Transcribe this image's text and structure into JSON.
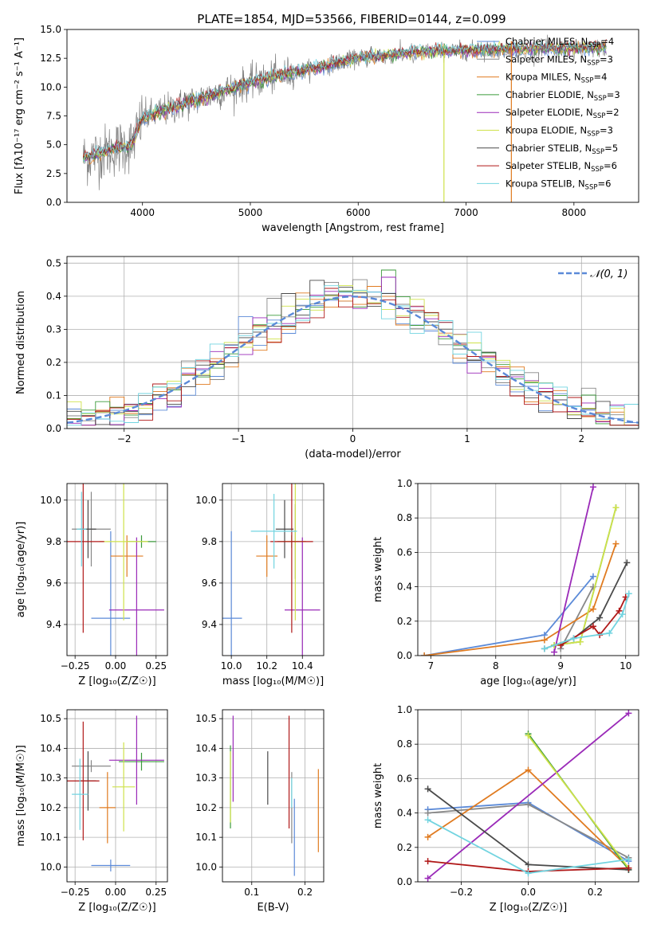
{
  "title": "PLATE=1854, MJD=53566, FIBERID=0144, z=0.099",
  "models": [
    {
      "name": "Chabrier MILES",
      "nssp": "4",
      "color": "#5b8ad8"
    },
    {
      "name": "Salpeter MILES",
      "nssp": "3",
      "color": "#888888"
    },
    {
      "name": "Kroupa MILES",
      "nssp": "4",
      "color": "#e07b20"
    },
    {
      "name": "Chabrier ELODIE",
      "nssp": "3",
      "color": "#3a9a3a"
    },
    {
      "name": "Salpeter ELODIE",
      "nssp": "2",
      "color": "#9a2ab8"
    },
    {
      "name": "Kroupa ELODIE",
      "nssp": "3",
      "color": "#cfe24a"
    },
    {
      "name": "Chabrier STELIB",
      "nssp": "5",
      "color": "#4a4a4a"
    },
    {
      "name": "Salpeter STELIB",
      "nssp": "6",
      "color": "#b01818"
    },
    {
      "name": "Kroupa STELIB",
      "nssp": "6",
      "color": "#72d4e0"
    }
  ],
  "chart_data": [
    {
      "type": "line",
      "id": "spectrum",
      "xlabel": "wavelength [Angstrom, rest frame]",
      "ylabel": "Flux [fλ10⁻¹⁷ erg cm⁻² s⁻¹ A⁻¹]",
      "xlim": [
        3300,
        8600
      ],
      "ylim": [
        0,
        15
      ],
      "xticks": [
        "4000",
        "5000",
        "6000",
        "7000",
        "8000"
      ],
      "yticks": [
        "0.0",
        "2.5",
        "5.0",
        "7.5",
        "10.0",
        "12.5",
        "15.0"
      ],
      "continuum": {
        "x": [
          3450,
          3800,
          3900,
          4000,
          4500,
          5000,
          5500,
          6000,
          6500,
          7000,
          7500,
          8300
        ],
        "y": [
          3.8,
          4.8,
          5.0,
          7.3,
          8.9,
          10.4,
          11.5,
          12.5,
          13.0,
          13.2,
          13.3,
          13.4
        ]
      },
      "legend_nssp_label": "N",
      "legend_nssp_sub": "SSP",
      "grid": false
    },
    {
      "type": "line",
      "id": "residuals",
      "xlabel": "(data-model)/error",
      "ylabel": "Normed distribution",
      "xlim": [
        -2.5,
        2.5
      ],
      "ylim": [
        0,
        0.52
      ],
      "xticks": [
        "−2",
        "−1",
        "0",
        "1",
        "2"
      ],
      "yticks": [
        "0.0",
        "0.1",
        "0.2",
        "0.3",
        "0.4",
        "0.5"
      ],
      "gaussian_label": "𝒩(0, 1)",
      "grid": true
    },
    {
      "type": "scatter",
      "id": "age_vs_Z",
      "xlabel": "Z [log₁₀(Z/Z☉)]",
      "ylabel": "age  [log₁₀(age/yr)]",
      "xlim": [
        -0.3,
        0.32
      ],
      "ylim": [
        9.25,
        10.08
      ],
      "xticks": [
        "−0.25",
        "0.00",
        "0.25"
      ],
      "yticks": [
        "9.4",
        "9.6",
        "9.8",
        "10.0"
      ],
      "points": [
        {
          "x": -0.03,
          "y": 9.43,
          "xerr": 0.12,
          "yerr": 0.42
        },
        {
          "x": -0.15,
          "y": 9.86,
          "xerr": 0.12,
          "yerr": 0.18
        },
        {
          "x": 0.07,
          "y": 9.73,
          "xerr": 0.1,
          "yerr": 0.1
        },
        {
          "x": 0.16,
          "y": 9.8,
          "xerr": 0.09,
          "yerr": 0.03
        },
        {
          "x": 0.13,
          "y": 9.47,
          "xerr": 0.17,
          "yerr": 0.35
        },
        {
          "x": 0.05,
          "y": 9.8,
          "xerr": 0.15,
          "yerr": 0.38
        },
        {
          "x": -0.17,
          "y": 9.86,
          "xerr": 0.05,
          "yerr": 0.14
        },
        {
          "x": -0.2,
          "y": 9.8,
          "xerr": 0.13,
          "yerr": 0.44
        },
        {
          "x": -0.21,
          "y": 9.86,
          "xerr": 0.03,
          "yerr": 0.18
        }
      ],
      "grid": true
    },
    {
      "type": "scatter",
      "id": "age_vs_mass",
      "xlabel": "mass [log₁₀(M/M☉)]",
      "ylabel": "",
      "xlim": [
        9.95,
        10.52
      ],
      "ylim": [
        9.25,
        10.08
      ],
      "xticks": [
        "10.0",
        "10.2",
        "10.4"
      ],
      "yticks": [
        "9.4",
        "9.6",
        "9.8",
        "10.0"
      ],
      "points": [
        {
          "x": 10.0,
          "y": 9.43,
          "xerr": 0.06,
          "yerr": 0.42
        },
        {
          "x": 10.36,
          "y": 9.8,
          "xerr": 0.02,
          "yerr": 0.18
        },
        {
          "x": 10.2,
          "y": 9.73,
          "xerr": 0.06,
          "yerr": 0.1
        },
        {
          "x": 10.34,
          "y": 9.8,
          "xerr": 0.08,
          "yerr": 0.03
        },
        {
          "x": 10.4,
          "y": 9.47,
          "xerr": 0.1,
          "yerr": 0.35
        },
        {
          "x": 10.36,
          "y": 9.8,
          "xerr": 0.06,
          "yerr": 0.38
        },
        {
          "x": 10.3,
          "y": 9.86,
          "xerr": 0.05,
          "yerr": 0.14
        },
        {
          "x": 10.34,
          "y": 9.8,
          "xerr": 0.12,
          "yerr": 0.44
        },
        {
          "x": 10.24,
          "y": 9.85,
          "xerr": 0.13,
          "yerr": 0.18
        }
      ],
      "grid": true
    },
    {
      "type": "line",
      "id": "weight_vs_age",
      "xlabel": "age  [log₁₀(age/yr)]",
      "ylabel": "mass weight",
      "xlim": [
        6.8,
        10.2
      ],
      "ylim": [
        0,
        1
      ],
      "xticks": [
        "7",
        "8",
        "9",
        "10"
      ],
      "yticks": [
        "0.0",
        "0.2",
        "0.4",
        "0.6",
        "0.8",
        "1.0"
      ],
      "series": [
        {
          "x": [
            6.9,
            8.75,
            9.5
          ],
          "y": [
            0.0,
            0.12,
            0.46
          ]
        },
        {
          "x": [
            9.0,
            9.5
          ],
          "y": [
            0.04,
            0.4
          ]
        },
        {
          "x": [
            6.9,
            8.75,
            9.5,
            9.85
          ],
          "y": [
            0.0,
            0.09,
            0.27,
            0.65
          ]
        },
        {
          "x": [
            8.9,
            9.3,
            9.85
          ],
          "y": [
            0.06,
            0.08,
            0.86
          ]
        },
        {
          "x": [
            8.9,
            9.5
          ],
          "y": [
            0.02,
            0.98
          ]
        },
        {
          "x": [
            8.9,
            9.3,
            9.85
          ],
          "y": [
            0.06,
            0.08,
            0.86
          ]
        },
        {
          "x": [
            8.75,
            9.2,
            9.6,
            10.02
          ],
          "y": [
            0.04,
            0.1,
            0.22,
            0.54
          ]
        },
        {
          "x": [
            9.0,
            9.5,
            9.6,
            9.9,
            10.0
          ],
          "y": [
            0.06,
            0.17,
            0.12,
            0.26,
            0.34
          ]
        },
        {
          "x": [
            8.75,
            9.2,
            9.75,
            9.95,
            10.05
          ],
          "y": [
            0.04,
            0.1,
            0.13,
            0.24,
            0.36
          ]
        }
      ],
      "grid": true
    },
    {
      "type": "scatter",
      "id": "mass_vs_Z",
      "xlabel": "Z [log₁₀(Z/Z☉)]",
      "ylabel": "mass [log₁₀(M/M☉)]",
      "xlim": [
        -0.3,
        0.32
      ],
      "ylim": [
        9.95,
        10.53
      ],
      "xticks": [
        "−0.25",
        "0.00",
        "0.25"
      ],
      "yticks": [
        "10.0",
        "10.1",
        "10.2",
        "10.3",
        "10.4",
        "10.5"
      ],
      "points": [
        {
          "x": -0.03,
          "y": 10.005,
          "xerr": 0.12,
          "yerr": 0.02
        },
        {
          "x": -0.15,
          "y": 10.34,
          "xerr": 0.12,
          "yerr": 0.02
        },
        {
          "x": -0.05,
          "y": 10.2,
          "xerr": 0.05,
          "yerr": 0.12
        },
        {
          "x": 0.16,
          "y": 10.355,
          "xerr": 0.14,
          "yerr": 0.03
        },
        {
          "x": 0.13,
          "y": 10.36,
          "xerr": 0.17,
          "yerr": 0.15
        },
        {
          "x": 0.05,
          "y": 10.27,
          "xerr": 0.07,
          "yerr": 0.15
        },
        {
          "x": -0.17,
          "y": 10.29,
          "xerr": 0.05,
          "yerr": 0.1
        },
        {
          "x": -0.2,
          "y": 10.29,
          "xerr": 0.1,
          "yerr": 0.2
        },
        {
          "x": -0.22,
          "y": 10.245,
          "xerr": 0.05,
          "yerr": 0.12
        }
      ],
      "grid": true
    },
    {
      "type": "scatter",
      "id": "mass_vs_ebv",
      "xlabel": "E(B-V)",
      "ylabel": "",
      "xlim": [
        0.045,
        0.235
      ],
      "ylim": [
        9.95,
        10.53
      ],
      "xticks": [
        "0.1",
        "0.2"
      ],
      "yticks": [
        "10.0",
        "10.1",
        "10.2",
        "10.3",
        "10.4",
        "10.5"
      ],
      "points": [
        {
          "x": 0.18,
          "y": 10.1,
          "yerr": 0.13
        },
        {
          "x": 0.175,
          "y": 10.2,
          "yerr": 0.12
        },
        {
          "x": 0.225,
          "y": 10.19,
          "yerr": 0.14
        },
        {
          "x": 0.06,
          "y": 10.27,
          "yerr": 0.14
        },
        {
          "x": 0.065,
          "y": 10.365,
          "yerr": 0.145
        },
        {
          "x": 0.06,
          "y": 10.27,
          "yerr": 0.12
        },
        {
          "x": 0.13,
          "y": 10.3,
          "yerr": 0.09
        },
        {
          "x": 0.17,
          "y": 10.32,
          "yerr": 0.19
        },
        {
          "x": 0.175,
          "y": 10.25,
          "yerr": 0.05
        }
      ],
      "grid": true
    },
    {
      "type": "line",
      "id": "weight_vs_Z",
      "xlabel": "Z [log₁₀(Z/Z☉)]",
      "ylabel": "mass weight",
      "xlim": [
        -0.33,
        0.33
      ],
      "ylim": [
        0,
        1
      ],
      "xticks": [
        "−0.2",
        "0.0",
        "0.2"
      ],
      "yticks": [
        "0.0",
        "0.2",
        "0.4",
        "0.6",
        "0.8",
        "1.0"
      ],
      "series": [
        {
          "x": [
            -0.3,
            0.0,
            0.3
          ],
          "y": [
            0.42,
            0.46,
            0.12
          ]
        },
        {
          "x": [
            -0.3,
            0.0,
            0.3
          ],
          "y": [
            0.4,
            0.45,
            0.14
          ]
        },
        {
          "x": [
            -0.3,
            0.0,
            0.3
          ],
          "y": [
            0.26,
            0.65,
            0.08
          ]
        },
        {
          "x": [
            0.0,
            0.3
          ],
          "y": [
            0.86,
            0.07
          ]
        },
        {
          "x": [
            -0.3,
            0.3
          ],
          "y": [
            0.02,
            0.98
          ]
        },
        {
          "x": [
            0.0,
            0.3
          ],
          "y": [
            0.85,
            0.08
          ]
        },
        {
          "x": [
            -0.3,
            0.0,
            0.3
          ],
          "y": [
            0.54,
            0.1,
            0.07
          ]
        },
        {
          "x": [
            -0.3,
            0.0,
            0.3
          ],
          "y": [
            0.12,
            0.06,
            0.08
          ]
        },
        {
          "x": [
            -0.3,
            0.0,
            0.3
          ],
          "y": [
            0.36,
            0.05,
            0.13
          ]
        }
      ],
      "grid": true
    }
  ]
}
